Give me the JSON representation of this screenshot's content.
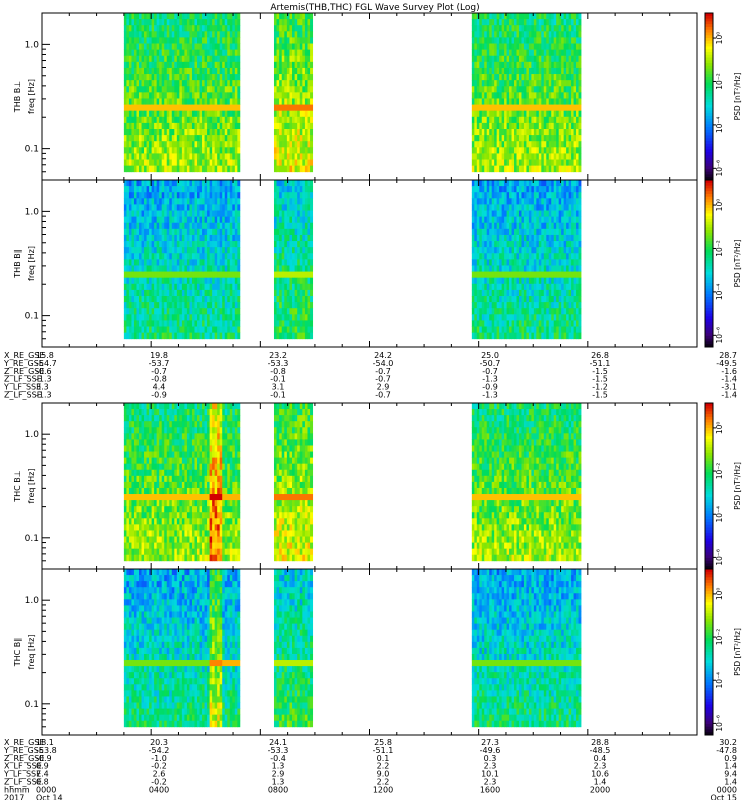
{
  "chart_data": {
    "type": "heatmap",
    "title": "Artemis(THB,THC) FGL Wave Survey Plot (Log)",
    "y_scale": "log",
    "ylim_hz": [
      0.05,
      2.0
    ],
    "y_tick_labels": [
      "1.0",
      "0.1"
    ],
    "colormap": "rainbow",
    "colorbar": {
      "scale": "log",
      "label": "PSD [nT²/Hz]",
      "tick_labels": [
        "10⁰",
        "10⁻²",
        "10⁻⁴",
        "10⁻⁶"
      ]
    },
    "x_range_hhmm": [
      "0000",
      "0000"
    ],
    "data_intervals_hhmm": [
      [
        "0300",
        "0715"
      ],
      [
        "0830",
        "0955"
      ],
      [
        "1545",
        "1945"
      ]
    ],
    "panels": [
      {
        "ylabel": "THB B⊥",
        "ylabel2": "freq [Hz]",
        "band_hz": 0.25,
        "intensity": "moderate"
      },
      {
        "ylabel": "THB B∥",
        "ylabel2": "freq [Hz]",
        "band_hz": 0.25,
        "intensity": "low"
      },
      {
        "ylabel": "THC B⊥",
        "ylabel2": "freq [Hz]",
        "band_hz": 0.25,
        "intensity": "moderate",
        "enhancement_hhmm": "0620"
      },
      {
        "ylabel": "THC B∥",
        "ylabel2": "freq [Hz]",
        "band_hz": 0.25,
        "intensity": "low",
        "enhancement_hhmm": "0620"
      }
    ]
  },
  "ephem_thb": {
    "labels": [
      "X_RE_GSE",
      "Y_RE_GSE",
      "Z_RE_GSE",
      "Z_LF_SSE",
      "Y_LF_SSE",
      "Z_LF_SSE"
    ],
    "columns": [
      [
        "15.8",
        "-54.7",
        "-0.6",
        "-1.3",
        "3.3",
        "-1.3"
      ],
      [
        "19.8",
        "-53.7",
        "-0.7",
        "-0.8",
        "4.4",
        "-0.9"
      ],
      [
        "23.2",
        "-53.3",
        "-0.8",
        "-0.1",
        "3.1",
        "-0.1"
      ],
      [
        "24.2",
        "-54.0",
        "-0.7",
        "-0.7",
        "2.9",
        "-0.7"
      ],
      [
        "25.0",
        "-50.7",
        "-0.7",
        "-1.3",
        "-0.9",
        "-1.3"
      ],
      [
        "26.8",
        "-51.1",
        "-1.5",
        "-1.5",
        "-1.2",
        "-1.5"
      ],
      [
        "28.7",
        "-49.5",
        "-1.6",
        "-1.4",
        "-3.1",
        "-1.4"
      ]
    ]
  },
  "ephem_thc": {
    "labels": [
      "X_RE_GSE",
      "Y_RE_GSE",
      "Z_RE_GSE",
      "X_LF_SSE",
      "Y_LF_SSE",
      "Z_LF_SSE",
      "hhmm",
      "2017"
    ],
    "columns": [
      [
        "18.1",
        "-53.8",
        "-0.9",
        "0.9",
        "7.4",
        "0.8",
        "0000",
        "Oct 14"
      ],
      [
        "20.3",
        "-54.2",
        "-1.0",
        "-0.2",
        "2.6",
        "-0.2",
        "0400",
        ""
      ],
      [
        "24.1",
        "-53.3",
        "-0.4",
        "1.3",
        "2.9",
        "1.3",
        "0800",
        ""
      ],
      [
        "25.8",
        "-51.1",
        "0.1",
        "2.2",
        "9.0",
        "2.2",
        "1200",
        ""
      ],
      [
        "27.3",
        "-49.6",
        "0.3",
        "2.3",
        "10.1",
        "2.3",
        "1600",
        ""
      ],
      [
        "28.8",
        "-48.5",
        "0.4",
        "2.3",
        "10.6",
        "1.4",
        "2000",
        ""
      ],
      [
        "30.2",
        "-47.8",
        "0.9",
        "1.4",
        "9.4",
        "1.4",
        "0000",
        "Oct 15"
      ]
    ]
  }
}
